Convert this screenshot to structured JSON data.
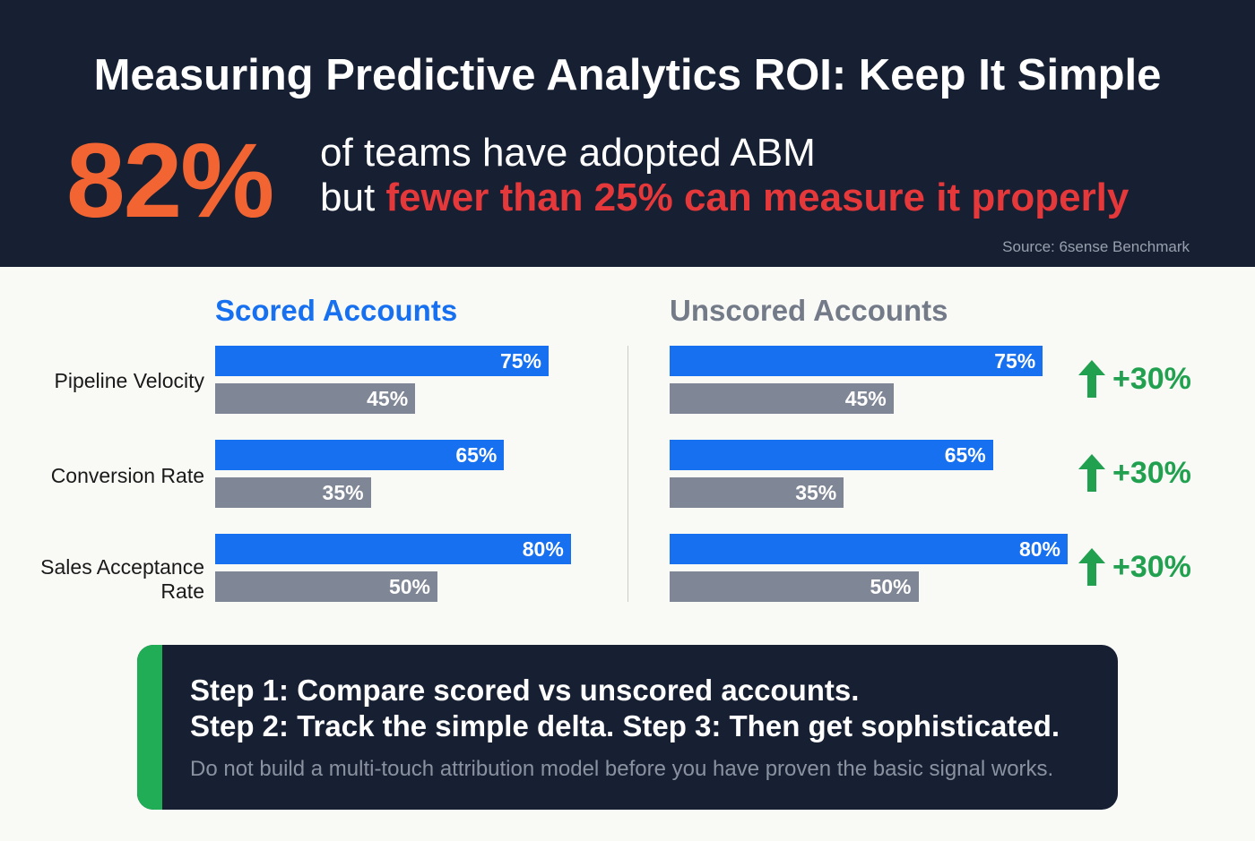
{
  "header": {
    "title": "Measuring Predictive Analytics ROI: Keep It Simple",
    "stat": "82%",
    "line1": "of teams have adopted ABM",
    "line2_prefix": "but",
    "line2_highlight": "fewer than 25% can measure it properly",
    "source": "Source: 6sense Benchmark"
  },
  "chart_data": {
    "type": "bar",
    "categories": [
      "Pipeline Velocity",
      "Conversion Rate",
      "Sales Acceptance Rate"
    ],
    "panels": [
      {
        "title": "Scored Accounts",
        "series": [
          {
            "name": "top",
            "values": [
              75,
              65,
              80
            ],
            "labels": [
              "75%",
              "65%",
              "80%"
            ]
          },
          {
            "name": "bottom",
            "values": [
              45,
              35,
              50
            ],
            "labels": [
              "45%",
              "35%",
              "50%"
            ]
          }
        ]
      },
      {
        "title": "Unscored Accounts",
        "series": [
          {
            "name": "top",
            "values": [
              75,
              65,
              80
            ],
            "labels": [
              "75%",
              "65%",
              "80%"
            ]
          },
          {
            "name": "bottom",
            "values": [
              45,
              35,
              50
            ],
            "labels": [
              "45%",
              "35%",
              "50%"
            ]
          }
        ]
      }
    ],
    "deltas": [
      "+30%",
      "+30%",
      "+30%"
    ],
    "colors": {
      "top": "#1670f0",
      "bottom": "#7f8695",
      "delta": "#21a150"
    }
  },
  "labels": {
    "row1": "Pipeline Velocity",
    "row2": "Conversion Rate",
    "row3a": "Sales Acceptance",
    "row3b": "Rate"
  },
  "callout": {
    "step1": "Step 1: Compare scored vs unscored accounts.",
    "step2": "Step 2: Track the simple delta. Step 3: Then get sophisticated.",
    "note": "Do not build a multi-touch attribution model before you have proven the basic signal works."
  }
}
